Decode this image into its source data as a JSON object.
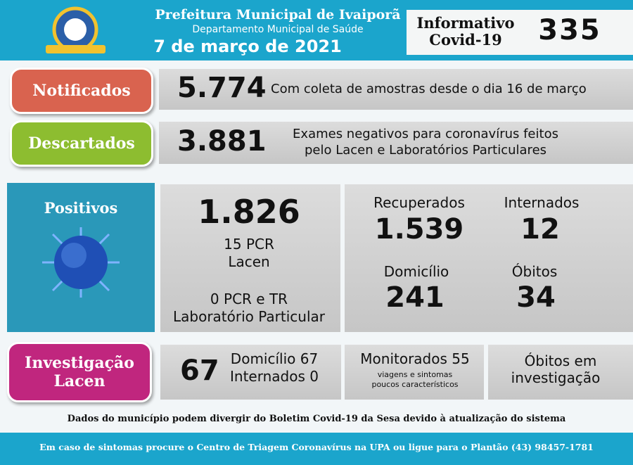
{
  "header": {
    "title": "Prefeitura Municipal de Ivaiporã",
    "subtitle": "Departamento Municipal de Saúde",
    "date": "7 de março de 2021",
    "info_line1": "Informativo",
    "info_line2": "Covid-19",
    "number": "335"
  },
  "notificados": {
    "label": "Notificados",
    "value": "5.774",
    "note": "Com coleta de amostras desde o dia 16 de março"
  },
  "descartados": {
    "label": "Descartados",
    "value": "3.881",
    "note_line1": "Exames negativos para coronavírus feitos",
    "note_line2": "pelo Lacen e Laboratórios Particulares"
  },
  "positivos": {
    "label": "Positivos",
    "total": "1.826",
    "line1": "15 PCR",
    "line2": "Lacen",
    "line3": "0 PCR e TR",
    "line4": "Laboratório Particular",
    "recuperados": {
      "label": "Recuperados",
      "value": "1.539"
    },
    "internados": {
      "label": "Internados",
      "value": "12"
    },
    "domicilio": {
      "label": "Domicílio",
      "value": "241"
    },
    "obitos": {
      "label": "Óbitos",
      "value": "34"
    }
  },
  "investigacao": {
    "label_line1": "Investigação",
    "label_line2": "Lacen",
    "value": "67",
    "line1": "Domicílio 67",
    "line2": "Internados 0",
    "monitorados": "Monitorados 55",
    "mon_note1": "viagens e sintomas",
    "mon_note2": "poucos característicos",
    "obitos_line1": "Óbitos em",
    "obitos_line2": "investigação"
  },
  "footer_note": "Dados do município podem divergir do Boletim Covid-19 da Sesa devido à atualização do sistema",
  "bottom_bar": "Em caso de sintomas procure o Centro de Triagem Coronavírus na UPA ou ligue para o Plantão (43) 98457-1781"
}
